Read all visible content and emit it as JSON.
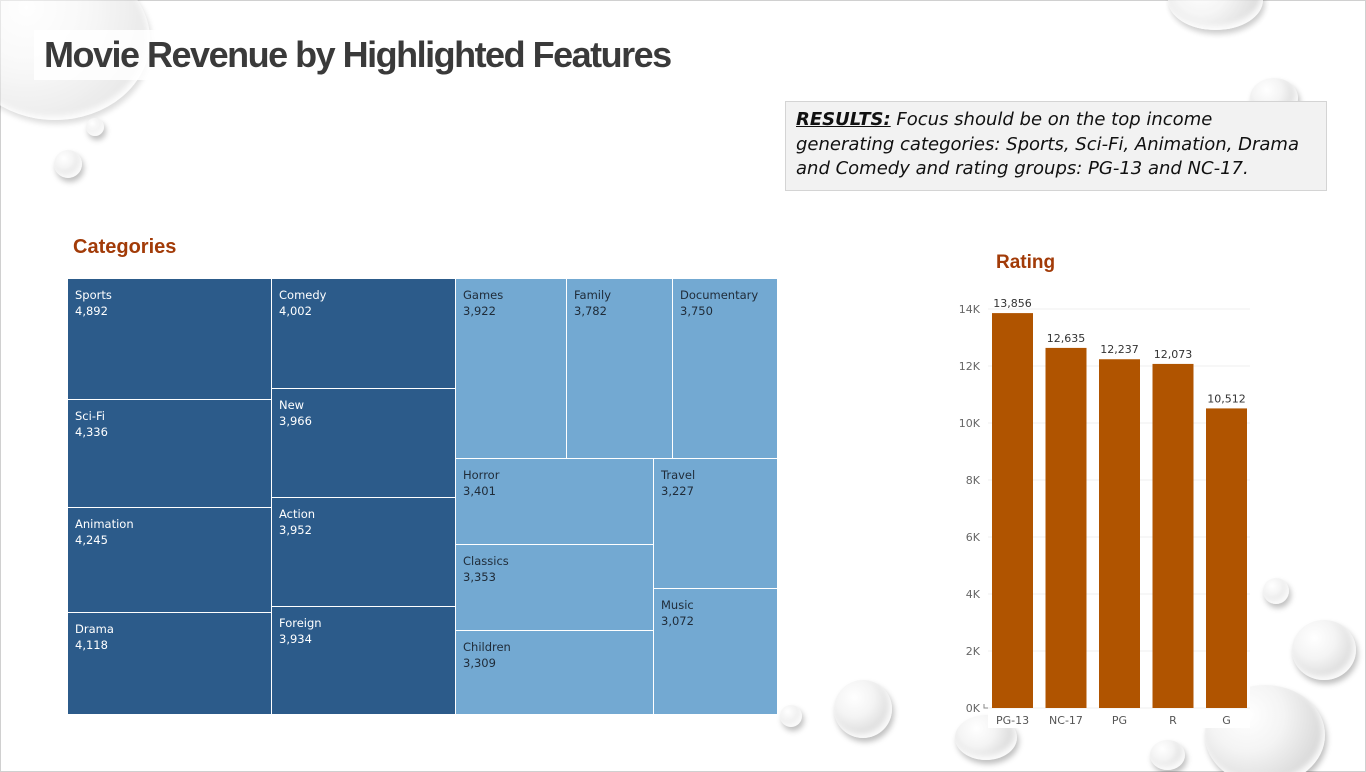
{
  "title": "Movie Revenue by Highlighted Features",
  "results": {
    "label": "RESULTS:",
    "text": "Focus should be on the top income generating categories:  Sports, Sci-Fi, Animation, Drama and Comedy and rating groups:  PG-13 and NC-17."
  },
  "colors": {
    "dark_blue": "#2c5b8a",
    "light_blue": "#73a9d2",
    "bar": "#b05400",
    "section_title": "#a23b08"
  },
  "chart_data": [
    {
      "type": "treemap",
      "title": "Categories",
      "items": [
        {
          "label": "Sports",
          "value": 4892,
          "display": "4,892",
          "highlighted": true
        },
        {
          "label": "Comedy",
          "value": 4002,
          "display": "4,002",
          "highlighted": true
        },
        {
          "label": "Games",
          "value": 3922,
          "display": "3,922",
          "highlighted": false
        },
        {
          "label": "Family",
          "value": 3782,
          "display": "3,782",
          "highlighted": false
        },
        {
          "label": "Documentary",
          "value": 3750,
          "display": "3,750",
          "highlighted": false
        },
        {
          "label": "Sci-Fi",
          "value": 4336,
          "display": "4,336",
          "highlighted": true
        },
        {
          "label": "New",
          "value": 3966,
          "display": "3,966",
          "highlighted": true
        },
        {
          "label": "Horror",
          "value": 3401,
          "display": "3,401",
          "highlighted": false
        },
        {
          "label": "Travel",
          "value": 3227,
          "display": "3,227",
          "highlighted": false
        },
        {
          "label": "Animation",
          "value": 4245,
          "display": "4,245",
          "highlighted": true
        },
        {
          "label": "Action",
          "value": 3952,
          "display": "3,952",
          "highlighted": true
        },
        {
          "label": "Classics",
          "value": 3353,
          "display": "3,353",
          "highlighted": false
        },
        {
          "label": "Music",
          "value": 3072,
          "display": "3,072",
          "highlighted": false
        },
        {
          "label": "Drama",
          "value": 4118,
          "display": "4,118",
          "highlighted": true
        },
        {
          "label": "Foreign",
          "value": 3934,
          "display": "3,934",
          "highlighted": true
        },
        {
          "label": "Children",
          "value": 3309,
          "display": "3,309",
          "highlighted": false
        }
      ]
    },
    {
      "type": "bar",
      "title": "Rating",
      "categories": [
        "PG-13",
        "NC-17",
        "PG",
        "R",
        "G"
      ],
      "values": [
        13856,
        12635,
        12237,
        12073,
        10512
      ],
      "data_labels": [
        "13,856",
        "12,635",
        "12,237",
        "12,073",
        "10,512"
      ],
      "ylim": [
        0,
        14000
      ],
      "yticks": [
        0,
        2000,
        4000,
        6000,
        8000,
        10000,
        12000,
        14000
      ],
      "ytick_labels": [
        "0K",
        "2K",
        "4K",
        "6K",
        "8K",
        "10K",
        "12K",
        "14K"
      ],
      "grid": true
    }
  ]
}
